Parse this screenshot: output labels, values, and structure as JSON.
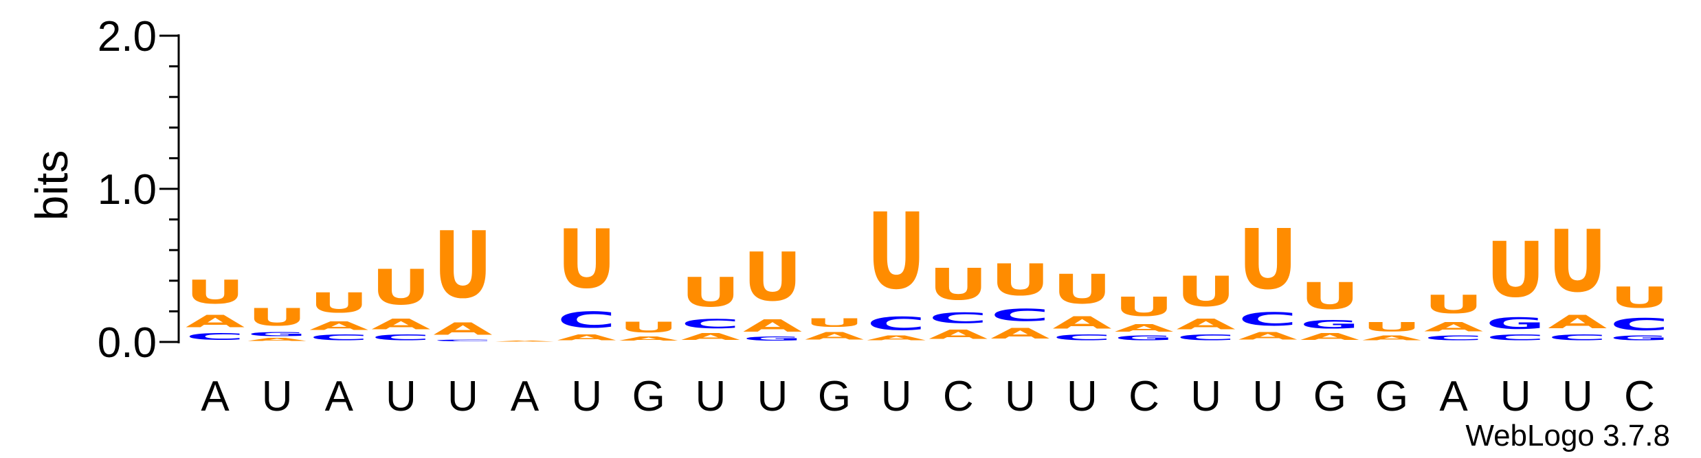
{
  "chart_data": {
    "type": "sequence-logo",
    "ylabel": "bits",
    "ylim": [
      0,
      2.0
    ],
    "yticks": [
      {
        "value": 0.0,
        "label": "0.0"
      },
      {
        "value": 1.0,
        "label": "1.0"
      },
      {
        "value": 2.0,
        "label": "2.0"
      }
    ],
    "minor_tick_step": 0.2,
    "colors": {
      "A": "#ff8c00",
      "U": "#ff8c00",
      "C": "#0000ff",
      "G": "#0000ff"
    },
    "positions": [
      {
        "label": "A",
        "stack": [
          [
            "C",
            0.07
          ],
          [
            "A",
            0.13
          ],
          [
            "U",
            0.25
          ]
        ]
      },
      {
        "label": "U",
        "stack": [
          [
            "A",
            0.03
          ],
          [
            "G",
            0.04
          ],
          [
            "U",
            0.18
          ]
        ]
      },
      {
        "label": "A",
        "stack": [
          [
            "C",
            0.06
          ],
          [
            "A",
            0.09
          ],
          [
            "U",
            0.21
          ]
        ]
      },
      {
        "label": "U",
        "stack": [
          [
            "C",
            0.06
          ],
          [
            "A",
            0.11
          ],
          [
            "U",
            0.37
          ]
        ]
      },
      {
        "label": "U",
        "stack": [
          [
            "C",
            0.02
          ],
          [
            "A",
            0.13
          ],
          [
            "U",
            0.7
          ]
        ]
      },
      {
        "label": "A",
        "stack": [
          [
            "A",
            0.01
          ]
        ]
      },
      {
        "label": "U",
        "stack": [
          [
            "A",
            0.06
          ],
          [
            "C",
            0.17
          ],
          [
            "U",
            0.62
          ]
        ]
      },
      {
        "label": "G",
        "stack": [
          [
            "A",
            0.04
          ],
          [
            "U",
            0.11
          ]
        ]
      },
      {
        "label": "U",
        "stack": [
          [
            "A",
            0.07
          ],
          [
            "C",
            0.1
          ],
          [
            "U",
            0.31
          ]
        ]
      },
      {
        "label": "U",
        "stack": [
          [
            "G",
            0.04
          ],
          [
            "A",
            0.13
          ],
          [
            "U",
            0.51
          ]
        ]
      },
      {
        "label": "G",
        "stack": [
          [
            "A",
            0.08
          ],
          [
            "U",
            0.09
          ]
        ]
      },
      {
        "label": "U",
        "stack": [
          [
            "A",
            0.05
          ],
          [
            "C",
            0.14
          ],
          [
            "U",
            0.8
          ]
        ]
      },
      {
        "label": "C",
        "stack": [
          [
            "A",
            0.1
          ],
          [
            "C",
            0.11
          ],
          [
            "U",
            0.33
          ]
        ]
      },
      {
        "label": "U",
        "stack": [
          [
            "A",
            0.11
          ],
          [
            "C",
            0.13
          ],
          [
            "U",
            0.33
          ]
        ]
      },
      {
        "label": "U",
        "stack": [
          [
            "C",
            0.06
          ],
          [
            "A",
            0.13
          ],
          [
            "U",
            0.31
          ]
        ]
      },
      {
        "label": "C",
        "stack": [
          [
            "G",
            0.05
          ],
          [
            "A",
            0.08
          ],
          [
            "U",
            0.2
          ]
        ]
      },
      {
        "label": "U",
        "stack": [
          [
            "C",
            0.06
          ],
          [
            "A",
            0.11
          ],
          [
            "U",
            0.32
          ]
        ]
      },
      {
        "label": "U",
        "stack": [
          [
            "A",
            0.08
          ],
          [
            "C",
            0.14
          ],
          [
            "U",
            0.63
          ]
        ]
      },
      {
        "label": "G",
        "stack": [
          [
            "A",
            0.07
          ],
          [
            "G",
            0.09
          ],
          [
            "U",
            0.28
          ]
        ]
      },
      {
        "label": "G",
        "stack": [
          [
            "A",
            0.05
          ],
          [
            "U",
            0.1
          ]
        ]
      },
      {
        "label": "A",
        "stack": [
          [
            "C",
            0.05
          ],
          [
            "A",
            0.1
          ],
          [
            "U",
            0.19
          ]
        ]
      },
      {
        "label": "U",
        "stack": [
          [
            "C",
            0.06
          ],
          [
            "G",
            0.12
          ],
          [
            "U",
            0.58
          ]
        ]
      },
      {
        "label": "U",
        "stack": [
          [
            "C",
            0.06
          ],
          [
            "A",
            0.14
          ],
          [
            "U",
            0.65
          ]
        ]
      },
      {
        "label": "C",
        "stack": [
          [
            "G",
            0.05
          ],
          [
            "C",
            0.13
          ],
          [
            "U",
            0.22
          ]
        ]
      }
    ]
  },
  "credit": "WebLogo 3.7.8"
}
